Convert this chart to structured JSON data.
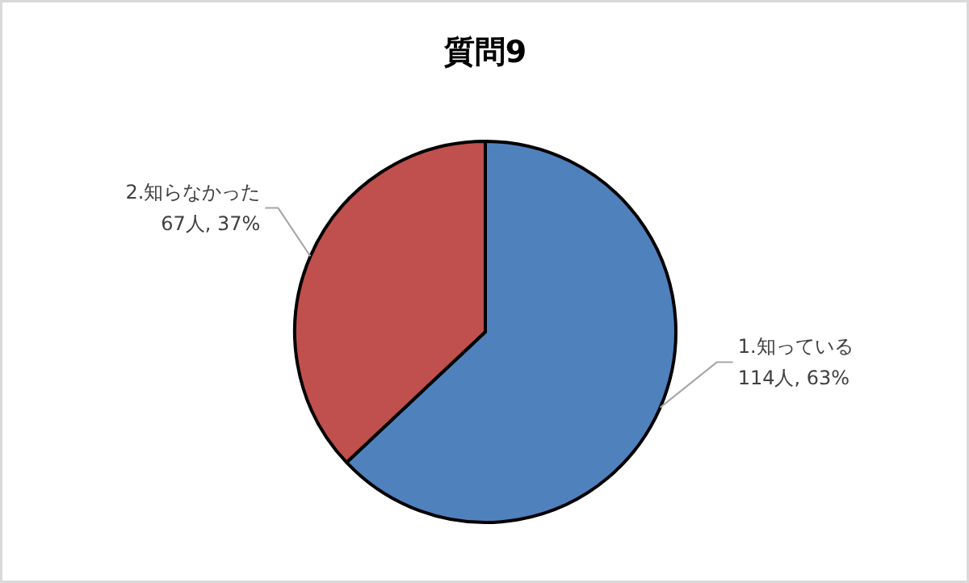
{
  "chart_data": {
    "type": "pie",
    "title": "質問9",
    "categories": [
      "1.知っている",
      "2.知らなかった"
    ],
    "values": [
      114,
      67
    ],
    "colors": [
      "#4f81bd",
      "#c0504d"
    ],
    "value_labels": [
      "114人, 63%",
      "67人, 37%"
    ],
    "legend": false
  }
}
